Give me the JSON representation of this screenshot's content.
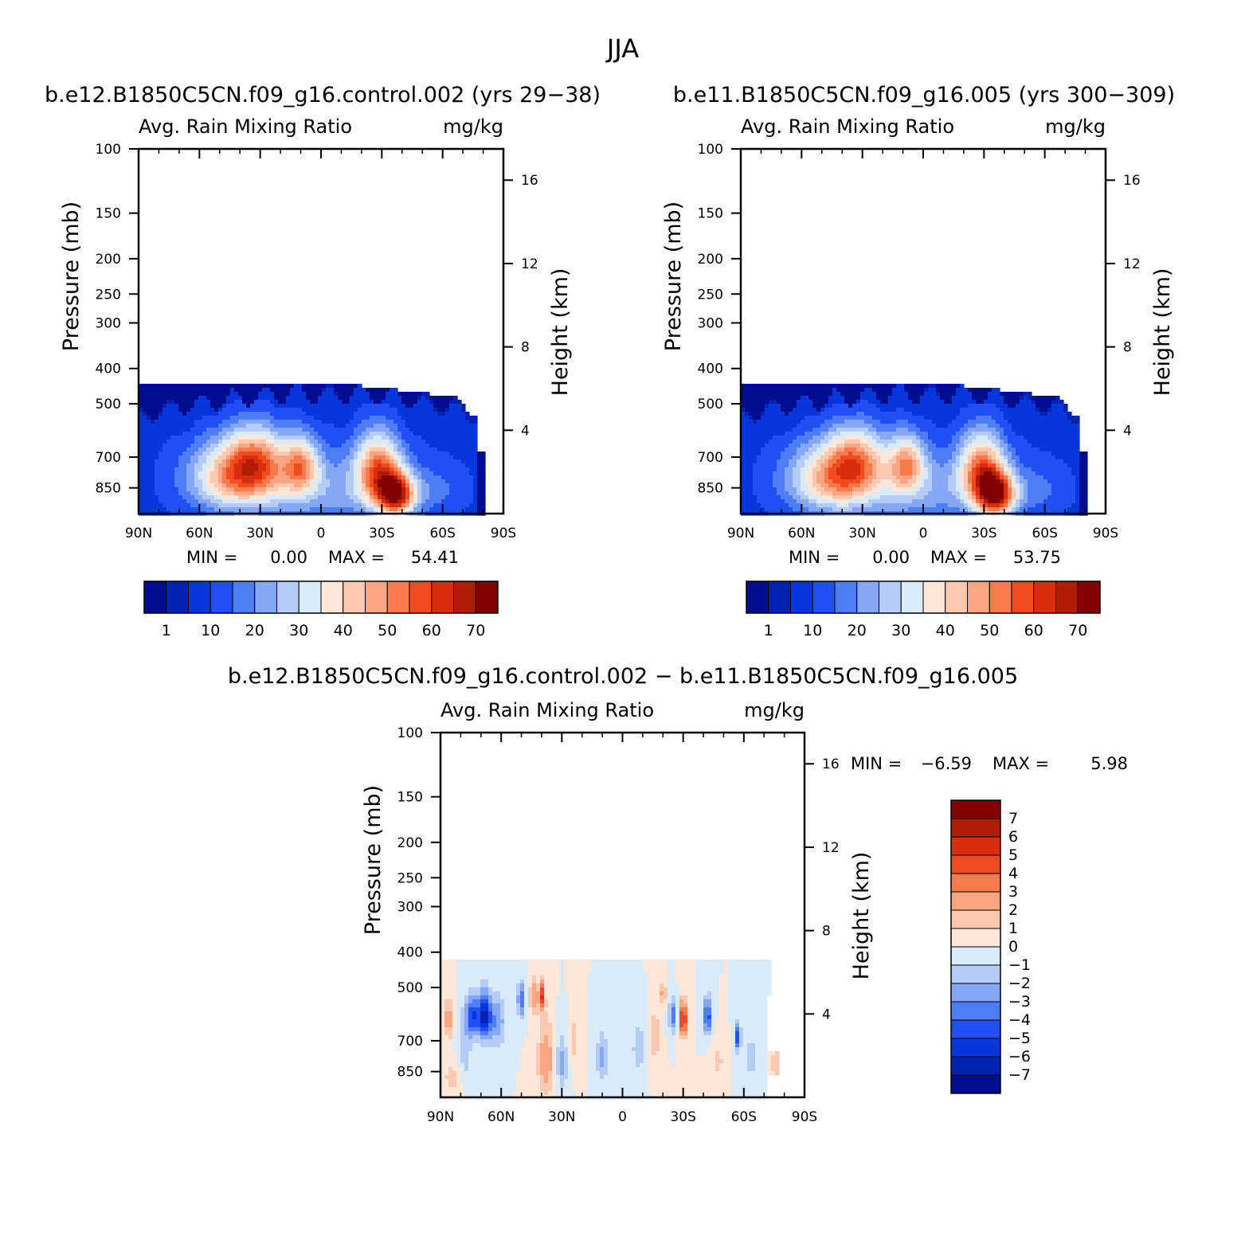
{
  "figure": {
    "title": "JJA"
  },
  "colors": {
    "abs_levels": [
      "#000d8f",
      "#0322b0",
      "#0636dc",
      "#1f4ff5",
      "#4f7df7",
      "#85a8f6",
      "#b5ccf8",
      "#d9eafb",
      "#fde7d8",
      "#fcc8b0",
      "#fca582",
      "#fb7a4c",
      "#f24a21",
      "#d92d0d",
      "#b01d05",
      "#840000"
    ],
    "diff_levels": [
      "#000d8f",
      "#0322b0",
      "#0636dc",
      "#1f4ff5",
      "#4f7df7",
      "#85a8f6",
      "#b5ccf8",
      "#d9eafb",
      "#fde7d8",
      "#fcc8b0",
      "#fca582",
      "#fb7a4c",
      "#f24a21",
      "#d92d0d",
      "#b01d05",
      "#840000"
    ]
  },
  "chart_data": [
    {
      "type": "heatmap",
      "id": "control",
      "title": "b.e12.B1850C5CN.f09_g16.control.002 (yrs 29−38)",
      "left_string": "Avg. Rain Mixing Ratio",
      "right_string": "mg/kg",
      "ylabel": "Pressure (mb)",
      "ylabel_right": "Height (km)",
      "xticks": [
        "90N",
        "60N",
        "30N",
        "0",
        "30S",
        "60S",
        "90S"
      ],
      "yticks": [
        100,
        150,
        200,
        250,
        300,
        400,
        500,
        700,
        850
      ],
      "height_ticks": [
        16,
        12,
        8,
        4
      ],
      "xlim": [
        90,
        -90
      ],
      "ylim": [
        100,
        1000
      ],
      "stats": {
        "min_label": "MIN =",
        "min": "0.00",
        "max_label": "MAX =",
        "max": "54.41"
      },
      "colorbar_labels": [
        "1",
        "10",
        "20",
        "30",
        "40",
        "50",
        "60",
        "70"
      ],
      "peaks": [
        {
          "lat": 42,
          "p": 790,
          "value": 38,
          "rx": 22,
          "rp": 170
        },
        {
          "lat": 32,
          "p": 700,
          "value": 26,
          "rx": 14,
          "rp": 140
        },
        {
          "lat": 10,
          "p": 740,
          "value": 32,
          "rx": 9,
          "rp": 130
        },
        {
          "lat": -28,
          "p": 760,
          "value": 42,
          "rx": 11,
          "rp": 170
        },
        {
          "lat": -37,
          "p": 890,
          "value": 54,
          "rx": 9,
          "rp": 120
        },
        {
          "lat": 0,
          "p": 860,
          "value": 14,
          "rx": 40,
          "rp": 190
        },
        {
          "lat": -55,
          "p": 860,
          "value": 7,
          "rx": 15,
          "rp": 130
        }
      ]
    },
    {
      "type": "heatmap",
      "id": "case",
      "title": "b.e11.B1850C5CN.f09_g16.005 (yrs 300−309)",
      "left_string": "Avg. Rain Mixing Ratio",
      "right_string": "mg/kg",
      "ylabel": "Pressure (mb)",
      "ylabel_right": "Height (km)",
      "xticks": [
        "90N",
        "60N",
        "30N",
        "0",
        "30S",
        "60S",
        "90S"
      ],
      "yticks": [
        100,
        150,
        200,
        250,
        300,
        400,
        500,
        700,
        850
      ],
      "height_ticks": [
        16,
        12,
        8,
        4
      ],
      "xlim": [
        90,
        -90
      ],
      "ylim": [
        100,
        1000
      ],
      "stats": {
        "min_label": "MIN =",
        "min": "0.00",
        "max_label": "MAX =",
        "max": "53.75"
      },
      "colorbar_labels": [
        "1",
        "10",
        "20",
        "30",
        "40",
        "50",
        "60",
        "70"
      ],
      "peaks": [
        {
          "lat": 44,
          "p": 800,
          "value": 37,
          "rx": 22,
          "rp": 170
        },
        {
          "lat": 33,
          "p": 700,
          "value": 25,
          "rx": 14,
          "rp": 140
        },
        {
          "lat": 8,
          "p": 730,
          "value": 33,
          "rx": 9,
          "rp": 130
        },
        {
          "lat": -29,
          "p": 760,
          "value": 42,
          "rx": 11,
          "rp": 170
        },
        {
          "lat": -36,
          "p": 890,
          "value": 53,
          "rx": 9,
          "rp": 120
        },
        {
          "lat": 0,
          "p": 860,
          "value": 14,
          "rx": 40,
          "rp": 190
        },
        {
          "lat": -55,
          "p": 860,
          "value": 7,
          "rx": 15,
          "rp": 130
        }
      ]
    },
    {
      "type": "heatmap",
      "id": "difference",
      "title": "b.e12.B1850C5CN.f09_g16.control.002 − b.e11.B1850C5CN.f09_g16.005",
      "left_string": "Avg. Rain Mixing Ratio",
      "right_string": "mg/kg",
      "ylabel": "Pressure (mb)",
      "ylabel_right": "Height (km)",
      "xticks": [
        "90N",
        "60N",
        "30N",
        "0",
        "30S",
        "60S",
        "90S"
      ],
      "yticks": [
        100,
        150,
        200,
        250,
        300,
        400,
        500,
        700,
        850
      ],
      "height_ticks": [
        16,
        12,
        8,
        4
      ],
      "xlim": [
        90,
        -90
      ],
      "ylim": [
        100,
        1000
      ],
      "stats": {
        "min_label": "MIN =",
        "min": "−6.59",
        "max_label": "MAX =",
        "max": "5.98"
      },
      "colorbar_labels": [
        "7",
        "6",
        "5",
        "4",
        "3",
        "2",
        "1",
        "0",
        "−1",
        "−2",
        "−3",
        "−4",
        "−5",
        "−6",
        "−7"
      ],
      "features": [
        {
          "lat": 74,
          "p": 600,
          "value": -5,
          "rx": 4,
          "rp": 80
        },
        {
          "lat": 68,
          "p": 600,
          "value": -6,
          "rx": 3,
          "rp": 90
        },
        {
          "lat": 62,
          "p": 620,
          "value": -3,
          "rx": 4,
          "rp": 100
        },
        {
          "lat": 86,
          "p": 610,
          "value": 3,
          "rx": 2,
          "rp": 80
        },
        {
          "lat": 84,
          "p": 880,
          "value": 1.5,
          "rx": 5,
          "rp": 100
        },
        {
          "lat": 78,
          "p": 780,
          "value": -1.5,
          "rx": 4,
          "rp": 140
        },
        {
          "lat": 50,
          "p": 540,
          "value": -4,
          "rx": 2,
          "rp": 60
        },
        {
          "lat": 44,
          "p": 530,
          "value": 3,
          "rx": 2,
          "rp": 60
        },
        {
          "lat": 40,
          "p": 530,
          "value": 5,
          "rx": 1.5,
          "rp": 50
        },
        {
          "lat": 38,
          "p": 790,
          "value": 3,
          "rx": 4,
          "rp": 180
        },
        {
          "lat": 30,
          "p": 800,
          "value": -2.5,
          "rx": 3,
          "rp": 140
        },
        {
          "lat": 24,
          "p": 700,
          "value": 1.5,
          "rx": 3,
          "rp": 120
        },
        {
          "lat": 10,
          "p": 780,
          "value": -2.5,
          "rx": 3,
          "rp": 120
        },
        {
          "lat": -8,
          "p": 730,
          "value": -2,
          "rx": 3,
          "rp": 110
        },
        {
          "lat": -16,
          "p": 680,
          "value": 2,
          "rx": 2.5,
          "rp": 110
        },
        {
          "lat": -20,
          "p": 520,
          "value": 2.5,
          "rx": 1.5,
          "rp": 40
        },
        {
          "lat": -25,
          "p": 600,
          "value": -4,
          "rx": 2,
          "rp": 60
        },
        {
          "lat": -30,
          "p": 610,
          "value": 6,
          "rx": 2,
          "rp": 70
        },
        {
          "lat": -42,
          "p": 600,
          "value": -5,
          "rx": 2,
          "rp": 70
        },
        {
          "lat": -47,
          "p": 800,
          "value": 1.5,
          "rx": 3,
          "rp": 90
        },
        {
          "lat": -57,
          "p": 680,
          "value": -5,
          "rx": 1.5,
          "rp": 60
        },
        {
          "lat": -64,
          "p": 780,
          "value": -1.5,
          "rx": 4,
          "rp": 120
        },
        {
          "lat": -76,
          "p": 800,
          "value": 1.5,
          "rx": 3,
          "rp": 100
        }
      ]
    }
  ]
}
